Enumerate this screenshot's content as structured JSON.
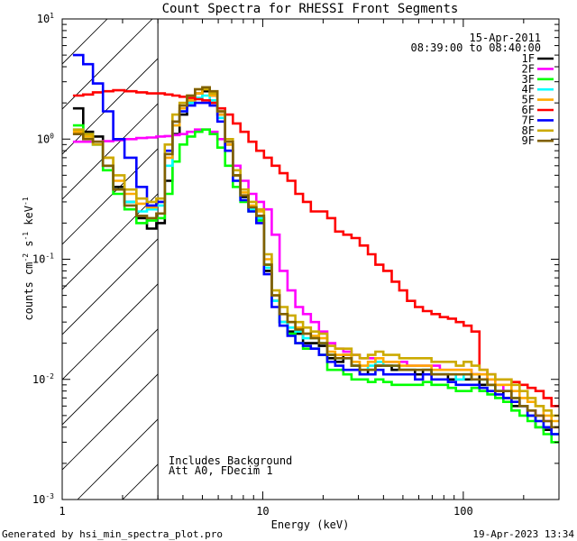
{
  "chart_data": {
    "type": "line",
    "title": "Count Spectra for RHESSI Front Segments",
    "xlabel": "Energy (keV)",
    "ylabel_parts": [
      "counts cm",
      "-2",
      " s",
      "-1",
      " keV",
      "-1"
    ],
    "xscale": "log",
    "yscale": "log",
    "xlim": [
      1,
      300
    ],
    "ylim": [
      0.001,
      10
    ],
    "x_tick_labels": [
      "1",
      "10",
      "100"
    ],
    "y_tick_labels": [
      {
        "base": "10",
        "exp": "1"
      },
      {
        "base": "10",
        "exp": "0"
      },
      {
        "base": "10",
        "exp": "-1"
      },
      {
        "base": "10",
        "exp": "-2"
      },
      {
        "base": "10",
        "exp": "-3"
      }
    ],
    "date": "15-Apr-2011",
    "time_range": "08:39:00 to 08:40:00",
    "annotations": [
      "Includes Background",
      "Att A0, FDecim 1"
    ],
    "shaded_region": {
      "x_from": 1,
      "x_to": 3
    },
    "energy_keV": [
      1.2,
      1.35,
      1.5,
      1.7,
      1.9,
      2.2,
      2.5,
      2.8,
      3.1,
      3.4,
      3.7,
      4.0,
      4.4,
      4.8,
      5.2,
      5.7,
      6.2,
      6.8,
      7.4,
      8.1,
      8.9,
      9.7,
      10.6,
      11.6,
      12.7,
      13.9,
      15.2,
      16.6,
      18.2,
      20,
      22,
      24,
      26.5,
      29,
      32,
      35,
      38,
      42,
      46,
      50,
      55,
      60,
      66,
      73,
      80,
      88,
      96,
      105,
      115,
      126,
      138,
      151,
      166,
      182,
      200,
      219,
      240,
      263,
      288
    ],
    "series": [
      {
        "name": "1F",
        "color": "#000000",
        "values": [
          1.8,
          1.15,
          1.05,
          0.6,
          0.4,
          0.3,
          0.22,
          0.18,
          0.2,
          0.45,
          1.1,
          1.6,
          2.0,
          2.4,
          2.5,
          2.3,
          1.6,
          0.9,
          0.5,
          0.33,
          0.27,
          0.22,
          0.08,
          0.045,
          0.03,
          0.025,
          0.024,
          0.02,
          0.02,
          0.019,
          0.015,
          0.014,
          0.016,
          0.013,
          0.011,
          0.012,
          0.013,
          0.013,
          0.012,
          0.012,
          0.012,
          0.011,
          0.012,
          0.011,
          0.011,
          0.01,
          0.01,
          0.01,
          0.011,
          0.009,
          0.009,
          0.008,
          0.007,
          0.006,
          0.006,
          0.005,
          0.004,
          0.0038,
          0.0035
        ]
      },
      {
        "name": "2F",
        "color": "#ff00ff",
        "values": [
          0.95,
          0.95,
          0.95,
          0.96,
          0.98,
          1.0,
          1.02,
          1.03,
          1.05,
          1.06,
          1.08,
          1.1,
          1.15,
          1.2,
          1.2,
          1.15,
          1.0,
          0.8,
          0.6,
          0.45,
          0.35,
          0.3,
          0.26,
          0.16,
          0.08,
          0.055,
          0.04,
          0.035,
          0.03,
          0.025,
          0.02,
          0.018,
          0.017,
          0.016,
          0.015,
          0.015,
          0.014,
          0.014,
          0.014,
          0.014,
          0.013,
          0.013,
          0.013,
          0.013,
          0.012,
          0.012,
          0.012,
          0.012,
          0.011,
          0.011,
          0.01,
          0.009,
          0.008,
          0.007,
          0.006,
          0.0055,
          0.005,
          0.0045,
          0.004
        ]
      },
      {
        "name": "3F",
        "color": "#00ff00",
        "values": [
          1.3,
          1.05,
          0.9,
          0.55,
          0.35,
          0.26,
          0.2,
          0.21,
          0.22,
          0.35,
          0.65,
          0.9,
          1.05,
          1.15,
          1.2,
          1.1,
          0.85,
          0.6,
          0.4,
          0.3,
          0.25,
          0.21,
          0.09,
          0.045,
          0.03,
          0.024,
          0.02,
          0.018,
          0.018,
          0.016,
          0.012,
          0.012,
          0.011,
          0.01,
          0.01,
          0.0095,
          0.01,
          0.0095,
          0.009,
          0.009,
          0.009,
          0.009,
          0.0095,
          0.009,
          0.009,
          0.0085,
          0.008,
          0.008,
          0.0085,
          0.008,
          0.0075,
          0.007,
          0.0065,
          0.0055,
          0.005,
          0.0045,
          0.004,
          0.0035,
          0.003
        ]
      },
      {
        "name": "4F",
        "color": "#00ffff",
        "values": [
          1.2,
          1.1,
          0.9,
          0.6,
          0.38,
          0.3,
          0.25,
          0.26,
          0.28,
          0.6,
          1.3,
          1.7,
          2.0,
          2.2,
          2.3,
          2.1,
          1.5,
          0.8,
          0.45,
          0.31,
          0.26,
          0.22,
          0.085,
          0.045,
          0.03,
          0.027,
          0.025,
          0.022,
          0.022,
          0.02,
          0.016,
          0.015,
          0.015,
          0.013,
          0.012,
          0.013,
          0.014,
          0.013,
          0.013,
          0.012,
          0.012,
          0.012,
          0.012,
          0.011,
          0.011,
          0.011,
          0.01,
          0.011,
          0.01,
          0.01,
          0.009,
          0.008,
          0.008,
          0.007,
          0.006,
          0.005,
          0.0045,
          0.004,
          0.0035
        ]
      },
      {
        "name": "5F",
        "color": "#ffaa00",
        "values": [
          1.15,
          1.05,
          0.95,
          0.7,
          0.45,
          0.35,
          0.29,
          0.27,
          0.3,
          0.7,
          1.3,
          1.8,
          2.1,
          2.4,
          2.6,
          2.3,
          1.6,
          0.9,
          0.5,
          0.36,
          0.28,
          0.25,
          0.1,
          0.05,
          0.035,
          0.03,
          0.027,
          0.024,
          0.023,
          0.022,
          0.017,
          0.016,
          0.016,
          0.014,
          0.013,
          0.014,
          0.015,
          0.014,
          0.014,
          0.013,
          0.013,
          0.013,
          0.013,
          0.012,
          0.012,
          0.012,
          0.012,
          0.012,
          0.011,
          0.011,
          0.01,
          0.009,
          0.009,
          0.008,
          0.007,
          0.0065,
          0.006,
          0.005,
          0.0045
        ]
      },
      {
        "name": "6F",
        "color": "#ff0000",
        "values": [
          2.3,
          2.35,
          2.45,
          2.5,
          2.55,
          2.5,
          2.45,
          2.4,
          2.4,
          2.35,
          2.3,
          2.25,
          2.2,
          2.15,
          2.1,
          2.0,
          1.8,
          1.6,
          1.35,
          1.15,
          0.95,
          0.8,
          0.7,
          0.6,
          0.52,
          0.45,
          0.35,
          0.3,
          0.25,
          0.25,
          0.22,
          0.17,
          0.16,
          0.15,
          0.13,
          0.11,
          0.09,
          0.08,
          0.065,
          0.055,
          0.045,
          0.04,
          0.037,
          0.035,
          0.033,
          0.032,
          0.03,
          0.028,
          0.025,
          0.012,
          0.011,
          0.01,
          0.01,
          0.0095,
          0.009,
          0.0085,
          0.008,
          0.007,
          0.006
        ]
      },
      {
        "name": "7F",
        "color": "#0000ff",
        "values": [
          5.0,
          4.2,
          2.9,
          1.7,
          1.0,
          0.7,
          0.4,
          0.28,
          0.3,
          0.8,
          1.4,
          1.7,
          1.9,
          2.0,
          2.0,
          1.9,
          1.4,
          0.8,
          0.45,
          0.31,
          0.25,
          0.2,
          0.075,
          0.04,
          0.028,
          0.023,
          0.02,
          0.019,
          0.018,
          0.016,
          0.014,
          0.013,
          0.012,
          0.012,
          0.011,
          0.011,
          0.012,
          0.011,
          0.011,
          0.011,
          0.011,
          0.01,
          0.011,
          0.01,
          0.01,
          0.0095,
          0.009,
          0.009,
          0.009,
          0.0085,
          0.008,
          0.0075,
          0.007,
          0.0065,
          0.006,
          0.005,
          0.0045,
          0.004,
          0.0035
        ]
      },
      {
        "name": "8F",
        "color": "#ccaa00",
        "values": [
          1.2,
          1.1,
          0.9,
          0.7,
          0.5,
          0.38,
          0.32,
          0.3,
          0.32,
          0.9,
          1.6,
          2.0,
          2.3,
          2.6,
          2.6,
          2.4,
          1.7,
          1.0,
          0.55,
          0.38,
          0.3,
          0.26,
          0.11,
          0.055,
          0.04,
          0.034,
          0.03,
          0.027,
          0.025,
          0.024,
          0.019,
          0.018,
          0.018,
          0.016,
          0.015,
          0.016,
          0.017,
          0.016,
          0.016,
          0.015,
          0.015,
          0.015,
          0.015,
          0.014,
          0.014,
          0.014,
          0.013,
          0.014,
          0.013,
          0.012,
          0.011,
          0.01,
          0.01,
          0.009,
          0.008,
          0.007,
          0.006,
          0.0055,
          0.005
        ]
      },
      {
        "name": "9F",
        "color": "#806000",
        "values": [
          1.1,
          1.0,
          0.95,
          0.6,
          0.38,
          0.28,
          0.23,
          0.22,
          0.24,
          0.75,
          1.4,
          1.9,
          2.3,
          2.6,
          2.7,
          2.5,
          1.7,
          0.95,
          0.5,
          0.34,
          0.27,
          0.23,
          0.09,
          0.05,
          0.035,
          0.03,
          0.026,
          0.024,
          0.022,
          0.02,
          0.016,
          0.015,
          0.015,
          0.013,
          0.012,
          0.012,
          0.013,
          0.013,
          0.013,
          0.012,
          0.012,
          0.012,
          0.012,
          0.011,
          0.011,
          0.011,
          0.011,
          0.011,
          0.01,
          0.01,
          0.009,
          0.008,
          0.008,
          0.007,
          0.006,
          0.0055,
          0.005,
          0.0045,
          0.004
        ]
      }
    ]
  },
  "footer": {
    "generator": "Generated by hsi_min_spectra_plot.pro",
    "timestamp": "19-Apr-2023 13:34"
  }
}
